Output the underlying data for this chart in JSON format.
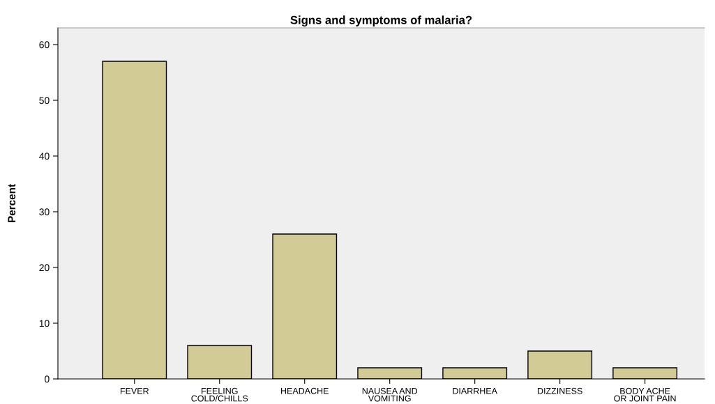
{
  "chart_data": {
    "type": "bar",
    "title": "Signs and symptoms of malaria?",
    "ylabel": "Percent",
    "categories": [
      "FEVER",
      "FEELING\nCOLD/CHILLS",
      "HEADACHE",
      "NAUSEA AND\nVOMITING",
      "DIARRHEA",
      "DIZZINESS",
      "BODY ACHE\nOR JOINT PAIN"
    ],
    "values": [
      57,
      6,
      26,
      2,
      2,
      5,
      2
    ],
    "color": "#d2cb96",
    "ylim": [
      0,
      63
    ],
    "yticks": [
      0,
      10,
      20,
      30,
      40,
      50,
      60
    ],
    "grid": false,
    "legend": false
  }
}
